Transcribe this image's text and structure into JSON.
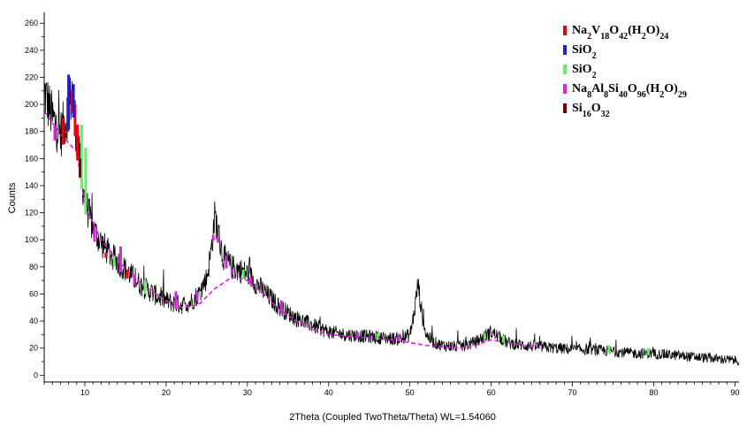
{
  "chart_data": {
    "type": "line",
    "title": "",
    "xlabel": "2Theta (Coupled TwoTheta/Theta) WL=1.54060",
    "ylabel": "Counts",
    "xlim": [
      5,
      90.5
    ],
    "ylim": [
      -5,
      268
    ],
    "x_ticks": [
      10,
      20,
      30,
      40,
      50,
      60,
      70,
      80,
      90
    ],
    "y_ticks": [
      0,
      20,
      40,
      60,
      80,
      100,
      120,
      140,
      160,
      180,
      200,
      220,
      240,
      260
    ],
    "grid": false,
    "legend_position": "top-right",
    "legend": [
      {
        "parts": [
          [
            "Na",
            ""
          ],
          [
            "2",
            "sub"
          ],
          [
            "V",
            ""
          ],
          [
            "18",
            "sub"
          ],
          [
            "O",
            ""
          ],
          [
            "42",
            "sub"
          ],
          [
            "(H",
            ""
          ],
          [
            "2",
            "sub"
          ],
          [
            "O)",
            ""
          ],
          [
            "24",
            "sub"
          ]
        ],
        "color": "#e8000b"
      },
      {
        "parts": [
          [
            "SiO",
            ""
          ],
          [
            "2",
            "sub"
          ]
        ],
        "color": "#1f1fd0"
      },
      {
        "parts": [
          [
            "SiO",
            ""
          ],
          [
            "2",
            "sub"
          ]
        ],
        "color": "#66ee66"
      },
      {
        "parts": [
          [
            "Na",
            ""
          ],
          [
            "8",
            "sub"
          ],
          [
            "Al",
            ""
          ],
          [
            "8",
            "sub"
          ],
          [
            "Si",
            ""
          ],
          [
            "40",
            "sub"
          ],
          [
            "O",
            ""
          ],
          [
            "96",
            "sub"
          ],
          [
            "(H",
            ""
          ],
          [
            "2",
            "sub"
          ],
          [
            "O)",
            ""
          ],
          [
            "29",
            "sub"
          ]
        ],
        "color": "#e020e0"
      },
      {
        "parts": [
          [
            "Si",
            ""
          ],
          [
            "16",
            "sub"
          ],
          [
            "O",
            ""
          ],
          [
            "32",
            "sub"
          ]
        ],
        "color": "#7a0000"
      }
    ],
    "series": [
      {
        "color": "#000000",
        "x": [
          5,
          6,
          7,
          8,
          8.5,
          9,
          10,
          11,
          12,
          13,
          14,
          15,
          16,
          17,
          18,
          19,
          20,
          21,
          22,
          23,
          24,
          25,
          25.5,
          26,
          26.5,
          27,
          27.5,
          28,
          29,
          30,
          32,
          34,
          36,
          38,
          40,
          42,
          44,
          46,
          48,
          49,
          50,
          50.5,
          51,
          51.5,
          52,
          53,
          54,
          56,
          58,
          59,
          60,
          61,
          62,
          64,
          66,
          68,
          70,
          72,
          74,
          76,
          78,
          80,
          82,
          84,
          86,
          88,
          90,
          90.5
        ],
        "y": [
          210,
          190,
          178,
          195,
          212,
          175,
          130,
          108,
          98,
          90,
          84,
          78,
          72,
          66,
          62,
          58,
          55,
          53,
          52,
          54,
          60,
          72,
          90,
          118,
          102,
          88,
          84,
          80,
          78,
          75,
          62,
          50,
          42,
          37,
          32,
          30,
          29,
          28,
          27,
          27,
          30,
          45,
          68,
          44,
          30,
          24,
          22,
          21,
          24,
          28,
          32,
          28,
          24,
          22,
          21,
          20,
          19,
          19,
          18,
          17,
          16,
          16,
          15,
          14,
          13,
          12,
          11,
          11
        ]
      },
      {
        "color": "#e020e0",
        "x": [
          5,
          7,
          9,
          10,
          12,
          14,
          16,
          18,
          20,
          22,
          24,
          26,
          28,
          29,
          30,
          32,
          34,
          36,
          38,
          40,
          44,
          48,
          50,
          52,
          54,
          56,
          58,
          60,
          62,
          64,
          66
        ],
        "y": [
          195,
          178,
          165,
          125,
          100,
          85,
          73,
          63,
          55,
          50,
          52,
          64,
          72,
          72,
          70,
          60,
          48,
          40,
          34,
          30,
          28,
          26,
          24,
          22,
          21,
          20,
          22,
          26,
          24,
          22,
          20
        ]
      }
    ],
    "reference_peaks": [
      {
        "color": "#e8000b",
        "x": [
          7.3,
          7.9,
          8.4,
          8.8,
          9.1,
          12.6,
          15.2
        ],
        "y": [
          190,
          205,
          210,
          200,
          185,
          85,
          78
        ]
      },
      {
        "color": "#1f1fd0",
        "x": [
          8.0,
          8.6
        ],
        "y": [
          222,
          215
        ]
      },
      {
        "color": "#66ee66",
        "x": [
          9.6,
          10.1,
          13.6,
          17.4,
          24.2,
          29.5,
          46.0,
          59.2,
          61.5,
          74.5,
          79.3
        ],
        "y": [
          185,
          168,
          88,
          70,
          55,
          78,
          31,
          30,
          29,
          22,
          20
        ]
      },
      {
        "color": "#e020e0",
        "x": [
          6.3,
          11.2,
          14.4,
          16.1,
          21.2,
          23.8,
          25.8,
          26.4,
          27.4,
          28.1,
          30.4,
          34.2,
          43.6,
          48.6
        ],
        "y": [
          185,
          110,
          95,
          74,
          62,
          62,
          95,
          78,
          88,
          78,
          72,
          55,
          30,
          30
        ]
      },
      {
        "color": "#7a0000",
        "x": [
          7.6,
          9.4
        ],
        "y": [
          170,
          160
        ]
      }
    ]
  }
}
